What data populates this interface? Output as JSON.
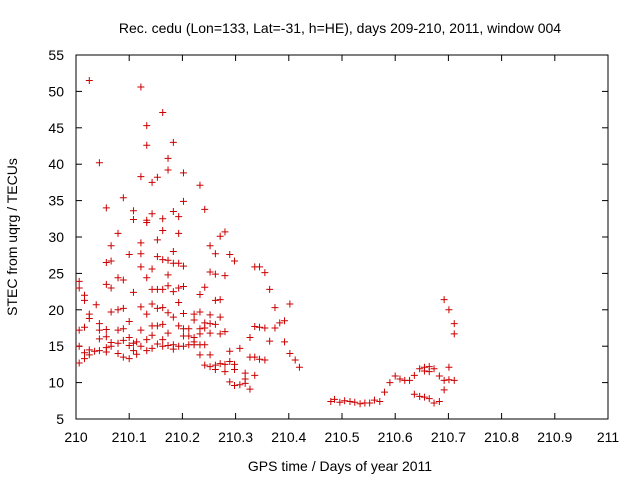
{
  "chart_data": {
    "type": "scatter",
    "title": "Rec. cedu (Lon=133, Lat=-31, h=HE), days 209-210, 2011, window 004",
    "xlabel": "GPS time / Days of year 2011",
    "ylabel": "STEC from uqrg / TECUs",
    "xlim": [
      210,
      211
    ],
    "ylim": [
      5,
      55
    ],
    "xticks": [
      "210",
      "210.1",
      "210.2",
      "210.3",
      "210.4",
      "210.5",
      "210.6",
      "210.7",
      "210.8",
      "210.9",
      "211"
    ],
    "yticks": [
      "5",
      "10",
      "15",
      "20",
      "25",
      "30",
      "35",
      "40",
      "45",
      "50",
      "55"
    ],
    "marker": "+",
    "color": "#cc0000",
    "points": [
      [
        210.006,
        23.9
      ],
      [
        210.006,
        23.0
      ],
      [
        210.006,
        17.2
      ],
      [
        210.006,
        15.0
      ],
      [
        210.006,
        12.7
      ],
      [
        210.016,
        22.0
      ],
      [
        210.016,
        21.3
      ],
      [
        210.016,
        17.6
      ],
      [
        210.016,
        14.1
      ],
      [
        210.016,
        13.3
      ],
      [
        210.025,
        51.5
      ],
      [
        210.025,
        19.4
      ],
      [
        210.025,
        18.8
      ],
      [
        210.025,
        14.5
      ],
      [
        210.025,
        13.8
      ],
      [
        210.035,
        14.3
      ],
      [
        210.038,
        20.7
      ],
      [
        210.044,
        40.2
      ],
      [
        210.044,
        18.1
      ],
      [
        210.044,
        17.2
      ],
      [
        210.044,
        16.0
      ],
      [
        210.044,
        14.4
      ],
      [
        210.057,
        34.0
      ],
      [
        210.057,
        26.5
      ],
      [
        210.057,
        23.5
      ],
      [
        210.057,
        17.3
      ],
      [
        210.057,
        16.3
      ],
      [
        210.057,
        14.8
      ],
      [
        210.057,
        14.2
      ],
      [
        210.066,
        28.8
      ],
      [
        210.066,
        26.7
      ],
      [
        210.066,
        23.0
      ],
      [
        210.066,
        19.7
      ],
      [
        210.066,
        15.5
      ],
      [
        210.066,
        15.0
      ],
      [
        210.079,
        30.5
      ],
      [
        210.079,
        24.4
      ],
      [
        210.079,
        20.0
      ],
      [
        210.079,
        17.2
      ],
      [
        210.079,
        15.4
      ],
      [
        210.079,
        14.0
      ],
      [
        210.089,
        35.4
      ],
      [
        210.089,
        24.1
      ],
      [
        210.089,
        20.2
      ],
      [
        210.089,
        17.4
      ],
      [
        210.089,
        15.8
      ],
      [
        210.089,
        13.5
      ],
      [
        210.1,
        27.6
      ],
      [
        210.1,
        18.4
      ],
      [
        210.1,
        16.2
      ],
      [
        210.1,
        15.1
      ],
      [
        210.1,
        13.3
      ],
      [
        210.108,
        33.6
      ],
      [
        210.108,
        32.4
      ],
      [
        210.108,
        22.4
      ],
      [
        210.108,
        15.4
      ],
      [
        210.108,
        14.4
      ],
      [
        210.114,
        15.6
      ],
      [
        210.114,
        13.9
      ],
      [
        210.122,
        50.6
      ],
      [
        210.122,
        38.3
      ],
      [
        210.122,
        29.2
      ],
      [
        210.122,
        27.7
      ],
      [
        210.122,
        25.9
      ],
      [
        210.122,
        20.4
      ],
      [
        210.122,
        17.2
      ],
      [
        210.122,
        15.0
      ],
      [
        210.133,
        45.3
      ],
      [
        210.133,
        42.6
      ],
      [
        210.133,
        32.3
      ],
      [
        210.133,
        32.0
      ],
      [
        210.133,
        24.4
      ],
      [
        210.133,
        19.4
      ],
      [
        210.133,
        15.9
      ],
      [
        210.133,
        14.4
      ],
      [
        210.143,
        37.5
      ],
      [
        210.143,
        33.2
      ],
      [
        210.143,
        25.6
      ],
      [
        210.143,
        22.8
      ],
      [
        210.143,
        20.8
      ],
      [
        210.143,
        17.8
      ],
      [
        210.143,
        16.5
      ],
      [
        210.143,
        14.7
      ],
      [
        210.153,
        38.2
      ],
      [
        210.153,
        29.6
      ],
      [
        210.153,
        27.3
      ],
      [
        210.153,
        22.8
      ],
      [
        210.153,
        20.2
      ],
      [
        210.153,
        17.8
      ],
      [
        210.153,
        15.3
      ],
      [
        210.163,
        47.1
      ],
      [
        210.163,
        32.5
      ],
      [
        210.163,
        30.9
      ],
      [
        210.163,
        26.9
      ],
      [
        210.163,
        22.8
      ],
      [
        210.163,
        20.3
      ],
      [
        210.163,
        18.0
      ],
      [
        210.163,
        15.9
      ],
      [
        210.163,
        15.0
      ],
      [
        210.173,
        40.8
      ],
      [
        210.173,
        39.2
      ],
      [
        210.173,
        26.8
      ],
      [
        210.173,
        24.8
      ],
      [
        210.173,
        23.3
      ],
      [
        210.173,
        19.6
      ],
      [
        210.173,
        16.8
      ],
      [
        210.173,
        15.1
      ],
      [
        210.183,
        43.0
      ],
      [
        210.183,
        33.5
      ],
      [
        210.183,
        28.0
      ],
      [
        210.183,
        26.4
      ],
      [
        210.183,
        22.5
      ],
      [
        210.183,
        19.0
      ],
      [
        210.183,
        15.2
      ],
      [
        210.183,
        14.6
      ],
      [
        210.193,
        32.8
      ],
      [
        210.193,
        30.5
      ],
      [
        210.193,
        26.4
      ],
      [
        210.193,
        23.0
      ],
      [
        210.193,
        21.0
      ],
      [
        210.193,
        17.8
      ],
      [
        210.193,
        15.0
      ],
      [
        210.202,
        38.8
      ],
      [
        210.202,
        34.9
      ],
      [
        210.202,
        26.0
      ],
      [
        210.202,
        23.2
      ],
      [
        210.202,
        19.5
      ],
      [
        210.202,
        17.4
      ],
      [
        210.202,
        16.4
      ],
      [
        210.202,
        15.0
      ],
      [
        210.212,
        17.4
      ],
      [
        210.212,
        16.4
      ],
      [
        210.212,
        15.2
      ],
      [
        210.222,
        19.4
      ],
      [
        210.222,
        18.6
      ],
      [
        210.222,
        16.2
      ],
      [
        210.222,
        15.6
      ],
      [
        210.222,
        15.2
      ],
      [
        210.233,
        37.1
      ],
      [
        210.233,
        22.1
      ],
      [
        210.233,
        19.7
      ],
      [
        210.233,
        17.4
      ],
      [
        210.233,
        16.7
      ],
      [
        210.233,
        15.2
      ],
      [
        210.233,
        13.8
      ],
      [
        210.242,
        33.8
      ],
      [
        210.242,
        23.1
      ],
      [
        210.242,
        18.2
      ],
      [
        210.242,
        17.5
      ],
      [
        210.242,
        15.2
      ],
      [
        210.242,
        12.4
      ],
      [
        210.252,
        28.8
      ],
      [
        210.252,
        25.2
      ],
      [
        210.252,
        19.3
      ],
      [
        210.252,
        18.1
      ],
      [
        210.252,
        16.8
      ],
      [
        210.252,
        13.8
      ],
      [
        210.252,
        12.2
      ],
      [
        210.262,
        27.7
      ],
      [
        210.262,
        24.9
      ],
      [
        210.262,
        21.3
      ],
      [
        210.262,
        18.0
      ],
      [
        210.262,
        12.4
      ],
      [
        210.262,
        11.8
      ],
      [
        210.271,
        30.1
      ],
      [
        210.271,
        21.4
      ],
      [
        210.271,
        19.0
      ],
      [
        210.271,
        16.7
      ],
      [
        210.271,
        12.6
      ],
      [
        210.28,
        30.7
      ],
      [
        210.28,
        24.7
      ],
      [
        210.28,
        17.0
      ],
      [
        210.28,
        12.5
      ],
      [
        210.28,
        11.5
      ],
      [
        210.289,
        27.6
      ],
      [
        210.289,
        14.3
      ],
      [
        210.289,
        12.9
      ],
      [
        210.289,
        10.1
      ],
      [
        210.298,
        26.7
      ],
      [
        210.298,
        12.5
      ],
      [
        210.298,
        11.8
      ],
      [
        210.298,
        9.6
      ],
      [
        210.308,
        14.7
      ],
      [
        210.308,
        9.7
      ],
      [
        210.318,
        11.3
      ],
      [
        210.318,
        10.5
      ],
      [
        210.318,
        9.9
      ],
      [
        210.327,
        16.2
      ],
      [
        210.327,
        13.5
      ],
      [
        210.327,
        9.1
      ],
      [
        210.336,
        25.9
      ],
      [
        210.336,
        17.7
      ],
      [
        210.336,
        13.5
      ],
      [
        210.336,
        11.0
      ],
      [
        210.345,
        25.9
      ],
      [
        210.345,
        17.6
      ],
      [
        210.345,
        13.2
      ],
      [
        210.355,
        25.1
      ],
      [
        210.355,
        17.5
      ],
      [
        210.355,
        13.1
      ],
      [
        210.364,
        22.8
      ],
      [
        210.364,
        15.7
      ],
      [
        210.374,
        20.3
      ],
      [
        210.374,
        17.5
      ],
      [
        210.383,
        18.2
      ],
      [
        210.392,
        18.5
      ],
      [
        210.392,
        15.6
      ],
      [
        210.402,
        20.8
      ],
      [
        210.402,
        14.0
      ],
      [
        210.412,
        13.1
      ],
      [
        210.42,
        12.1
      ],
      [
        210.479,
        7.4
      ],
      [
        210.486,
        7.7
      ],
      [
        210.496,
        7.3
      ],
      [
        210.505,
        7.5
      ],
      [
        210.515,
        7.4
      ],
      [
        210.524,
        7.3
      ],
      [
        210.534,
        7.1
      ],
      [
        210.543,
        7.2
      ],
      [
        210.552,
        7.2
      ],
      [
        210.561,
        7.6
      ],
      [
        210.571,
        7.4
      ],
      [
        210.58,
        8.7
      ],
      [
        210.59,
        10.0
      ],
      [
        210.6,
        10.9
      ],
      [
        210.609,
        10.5
      ],
      [
        210.618,
        10.3
      ],
      [
        210.627,
        10.3
      ],
      [
        210.636,
        11.0
      ],
      [
        210.636,
        8.4
      ],
      [
        210.646,
        11.9
      ],
      [
        210.646,
        8.1
      ],
      [
        210.655,
        12.1
      ],
      [
        210.655,
        11.6
      ],
      [
        210.655,
        8.0
      ],
      [
        210.664,
        12.2
      ],
      [
        210.664,
        11.5
      ],
      [
        210.664,
        7.8
      ],
      [
        210.673,
        11.9
      ],
      [
        210.673,
        7.2
      ],
      [
        210.683,
        10.9
      ],
      [
        210.683,
        7.4
      ],
      [
        210.692,
        21.4
      ],
      [
        210.692,
        10.3
      ],
      [
        210.692,
        9.0
      ],
      [
        210.701,
        20.0
      ],
      [
        210.701,
        12.1
      ],
      [
        210.701,
        10.4
      ],
      [
        210.711,
        18.1
      ],
      [
        210.711,
        16.7
      ],
      [
        210.711,
        10.3
      ]
    ]
  }
}
